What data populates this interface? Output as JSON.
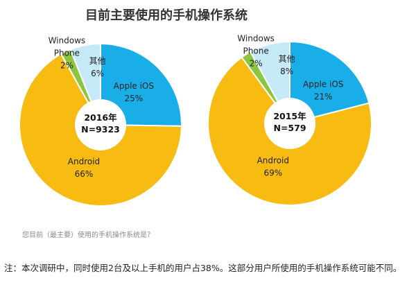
{
  "title": "目前主要使用的手机操作系统",
  "chart_data": [
    {
      "type": "pie",
      "center_label": [
        "2016年",
        "N=9323"
      ],
      "slices": [
        {
          "key": "ios",
          "label": [
            "Apple iOS"
          ],
          "value": 25,
          "value_label": "25%",
          "color": "#1aaee8"
        },
        {
          "key": "android",
          "label": [
            "Android"
          ],
          "value": 66,
          "value_label": "66%",
          "color": "#f8bb12"
        },
        {
          "key": "windows",
          "label": [
            "Windows",
            "Phone"
          ],
          "value": 2,
          "value_label": "2%",
          "color": "#8cc640"
        },
        {
          "key": "other",
          "label": [
            "其他"
          ],
          "value": 6,
          "value_label": "6%",
          "color": "#c6e9f7"
        }
      ]
    },
    {
      "type": "pie",
      "center_label": [
        "2015年",
        "N=579"
      ],
      "slices": [
        {
          "key": "ios",
          "label": [
            "Apple iOS"
          ],
          "value": 21,
          "value_label": "21%",
          "color": "#1aaee8"
        },
        {
          "key": "android",
          "label": [
            "Android"
          ],
          "value": 69,
          "value_label": "69%",
          "color": "#f8bb12"
        },
        {
          "key": "windows",
          "label": [
            "Windows",
            "Phone"
          ],
          "value": 2,
          "value_label": "2%",
          "color": "#8cc640"
        },
        {
          "key": "other",
          "label": [
            "其他"
          ],
          "value": 8,
          "value_label": "8%",
          "color": "#c6e9f7"
        }
      ]
    }
  ],
  "question": "您目前（最主要）使用的手机操作系统是？",
  "note": "注：本次调研中，同时使用2台及以上手机的用户占38%。这部分用户所使用的手机操作系统可能不同。"
}
